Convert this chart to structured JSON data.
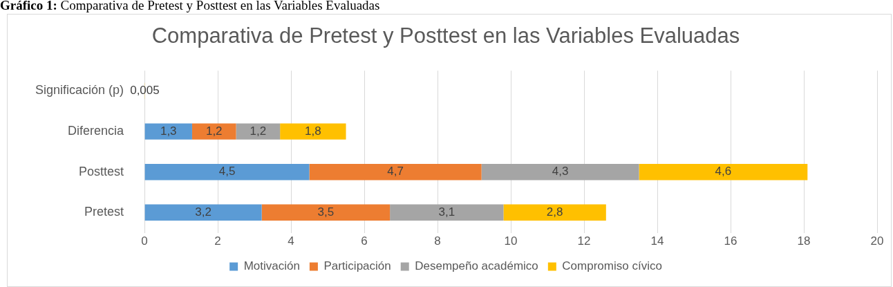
{
  "chart_data": {
    "type": "bar",
    "orientation": "horizontal",
    "stacked": true,
    "title": "Comparativa de Pretest y Posttest en las Variables Evaluadas",
    "annotations": [
      "Gráfico 1: Comparativa de Pretest y Posttest en las Variables Evaluadas"
    ],
    "categories": [
      "Significación (p)",
      "Diferencia",
      "Posttest",
      "Pretest"
    ],
    "series": [
      {
        "name": "Motivación",
        "color": "#5b9bd5",
        "values": [
          0,
          1.3,
          4.5,
          3.2
        ],
        "value_labels": [
          null,
          "1,3",
          "4,5",
          "3,2"
        ]
      },
      {
        "name": "Participación",
        "color": "#ed7d31",
        "values": [
          0,
          1.2,
          4.7,
          3.5
        ],
        "value_labels": [
          null,
          "1,2",
          "4,7",
          "3,5"
        ]
      },
      {
        "name": "Desempeño académico",
        "color": "#a5a5a5",
        "values": [
          0,
          1.2,
          4.3,
          3.1
        ],
        "value_labels": [
          null,
          "1,2",
          "4,3",
          "3,1"
        ]
      },
      {
        "name": "Compromiso cívico",
        "color": "#ffc000",
        "values": [
          0.005,
          1.8,
          4.6,
          2.8
        ],
        "value_labels": [
          "0,005",
          "1,8",
          "4,6",
          "2,8"
        ]
      }
    ],
    "xlim": [
      0,
      20
    ],
    "xticks": [
      0,
      2,
      4,
      6,
      8,
      10,
      12,
      14,
      16,
      18,
      20
    ],
    "grid": "x",
    "legend": "bottom"
  }
}
